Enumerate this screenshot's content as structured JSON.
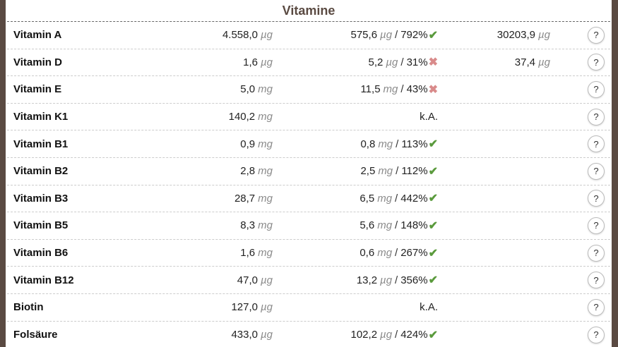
{
  "section": {
    "title": "Vitamine"
  },
  "help_label": "?",
  "colors": {
    "background": "#5a4a42",
    "ok": "#5a9a3c",
    "bad": "#d98b8b"
  },
  "rows": [
    {
      "name": "Vitamin A",
      "amount": "4.558,0",
      "amount_unit": "µg",
      "need": "575,6",
      "need_unit": "µg",
      "percent": "792%",
      "status": "ok",
      "extra": "30203,9",
      "extra_unit": "µg"
    },
    {
      "name": "Vitamin D",
      "amount": "1,6",
      "amount_unit": "µg",
      "need": "5,2",
      "need_unit": "µg",
      "percent": "31%",
      "status": "bad",
      "extra": "37,4",
      "extra_unit": "µg"
    },
    {
      "name": "Vitamin E",
      "amount": "5,0",
      "amount_unit": "mg",
      "need": "11,5",
      "need_unit": "mg",
      "percent": "43%",
      "status": "bad",
      "extra": "",
      "extra_unit": ""
    },
    {
      "name": "Vitamin K1",
      "amount": "140,2",
      "amount_unit": "mg",
      "need_text": "k.A.",
      "extra": "",
      "extra_unit": ""
    },
    {
      "name": "Vitamin B1",
      "amount": "0,9",
      "amount_unit": "mg",
      "need": "0,8",
      "need_unit": "mg",
      "percent": "113%",
      "status": "ok",
      "extra": "",
      "extra_unit": ""
    },
    {
      "name": "Vitamin B2",
      "amount": "2,8",
      "amount_unit": "mg",
      "need": "2,5",
      "need_unit": "mg",
      "percent": "112%",
      "status": "ok",
      "extra": "",
      "extra_unit": ""
    },
    {
      "name": "Vitamin B3",
      "amount": "28,7",
      "amount_unit": "mg",
      "need": "6,5",
      "need_unit": "mg",
      "percent": "442%",
      "status": "ok",
      "extra": "",
      "extra_unit": ""
    },
    {
      "name": "Vitamin B5",
      "amount": "8,3",
      "amount_unit": "mg",
      "need": "5,6",
      "need_unit": "mg",
      "percent": "148%",
      "status": "ok",
      "extra": "",
      "extra_unit": ""
    },
    {
      "name": "Vitamin B6",
      "amount": "1,6",
      "amount_unit": "mg",
      "need": "0,6",
      "need_unit": "mg",
      "percent": "267%",
      "status": "ok",
      "extra": "",
      "extra_unit": ""
    },
    {
      "name": "Vitamin B12",
      "amount": "47,0",
      "amount_unit": "µg",
      "need": "13,2",
      "need_unit": "µg",
      "percent": "356%",
      "status": "ok",
      "extra": "",
      "extra_unit": ""
    },
    {
      "name": "Biotin",
      "amount": "127,0",
      "amount_unit": "µg",
      "need_text": "k.A.",
      "extra": "",
      "extra_unit": ""
    },
    {
      "name": "Folsäure",
      "amount": "433,0",
      "amount_unit": "µg",
      "need": "102,2",
      "need_unit": "µg",
      "percent": "424%",
      "status": "ok",
      "extra": "",
      "extra_unit": ""
    }
  ]
}
